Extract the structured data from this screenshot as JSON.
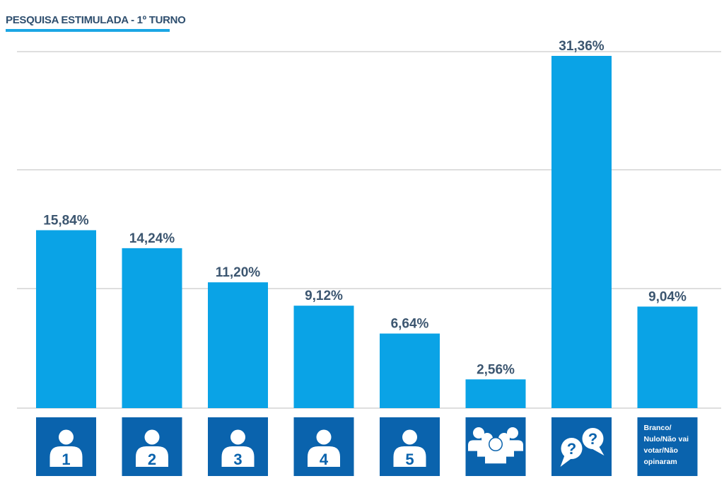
{
  "title": "PESQUISA ESTIMULADA - 1º TURNO",
  "colors": {
    "bar": "#0aa3e6",
    "tile": "#0a63ad",
    "grid": "#c9c9c9",
    "value_text": "#3c5670",
    "title_underline": "#1ba6e4"
  },
  "chart_data": {
    "type": "bar",
    "title": "PESQUISA ESTIMULADA - 1º TURNO",
    "categories": [
      "1",
      "2",
      "3",
      "4",
      "5",
      "group-icon",
      "question-icon",
      "Branco/ Nulo/Não vai votar/Não opinaram"
    ],
    "values": [
      15.84,
      14.24,
      11.2,
      9.12,
      6.64,
      2.56,
      31.36,
      9.04
    ],
    "value_labels": [
      "15,84%",
      "14,24%",
      "11,20%",
      "9,12%",
      "6,64%",
      "2,56%",
      "31,36%",
      "9,04%"
    ],
    "category_icons": [
      "person-icon",
      "person-icon",
      "person-icon",
      "person-icon",
      "person-icon",
      "group-icon",
      "question-icon",
      "text"
    ],
    "last_category_lines": [
      "Branco/",
      "Nulo/Não vai",
      "votar/Não",
      "opinaram"
    ],
    "ylim": [
      0,
      32
    ],
    "grid": true,
    "legend": "none"
  }
}
